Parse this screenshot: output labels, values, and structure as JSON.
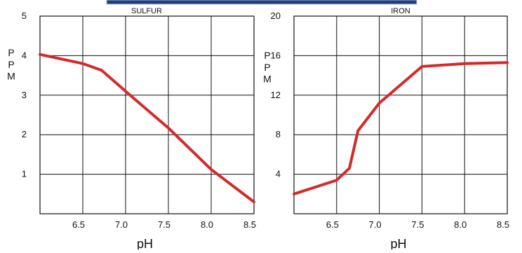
{
  "banner": {
    "fill_color": "#1f3f7a",
    "edge_color": "#bfc8d8"
  },
  "styles": {
    "line_color": "#d42a2a",
    "grid_color": "#111111",
    "background": "#ffffff"
  },
  "chart_data": [
    {
      "type": "line",
      "title": "SULFUR",
      "xlabel": "pH",
      "ylabel": "PPM",
      "xlim": [
        6.0,
        8.5
      ],
      "ylim": [
        0,
        5
      ],
      "x_ticks": [
        6.5,
        7.0,
        7.5,
        8.0,
        8.5
      ],
      "x_tick_labels": [
        "6.5",
        "7.0",
        "7.5",
        "8.0",
        "8.5"
      ],
      "y_ticks": [
        1,
        2,
        3,
        4,
        5
      ],
      "y_tick_labels": [
        "1",
        "2",
        "3",
        "4",
        "5"
      ],
      "grid": true,
      "series": [
        {
          "x": [
            6.0,
            6.5,
            6.72,
            7.0,
            7.5,
            8.0,
            8.5
          ],
          "y": [
            4.03,
            3.8,
            3.63,
            3.1,
            2.17,
            1.12,
            0.3
          ],
          "color": "#d42a2a"
        }
      ]
    },
    {
      "type": "line",
      "title": "IRON",
      "xlabel": "pH",
      "ylabel": "PPM",
      "xlim": [
        6.0,
        8.5
      ],
      "ylim": [
        0,
        20
      ],
      "x_ticks": [
        6.5,
        7.0,
        7.5,
        8.0,
        8.5
      ],
      "x_tick_labels": [
        "6.5",
        "7.0",
        "7.5",
        "8.0",
        "8.5"
      ],
      "y_ticks": [
        4,
        8,
        12,
        16,
        20
      ],
      "y_tick_labels": [
        "4",
        "8",
        "12",
        "16",
        "20"
      ],
      "grid": true,
      "series": [
        {
          "x": [
            6.0,
            6.5,
            6.65,
            6.75,
            7.0,
            7.5,
            8.0,
            8.5
          ],
          "y": [
            2.0,
            3.4,
            4.6,
            8.4,
            11.2,
            14.9,
            15.2,
            15.3
          ],
          "color": "#d42a2a"
        }
      ]
    }
  ]
}
